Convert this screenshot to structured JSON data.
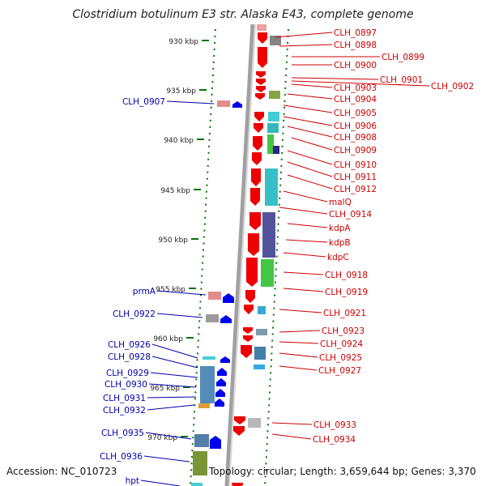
{
  "title": "Clostridium botulinum E3 str. Alaska E43, complete genome",
  "accession": "Accession: NC_010723",
  "topology": "Topology: circular; Length: 3,659,644 bp; Genes: 3,370",
  "colors": {
    "backbone": "#a0a0a0",
    "forward_gene": "#ee0000",
    "reverse_gene": "#0000ee",
    "forward_label": "#cc0000",
    "reverse_label": "#0000aa",
    "dots": "#007700"
  },
  "scale_ticks": [
    "930 kbp",
    "935 kbp",
    "940 kbp",
    "945 kbp",
    "950 kbp",
    "955 kbp",
    "960 kbp",
    "965 kbp",
    "970 kbp"
  ],
  "forward_labels": [
    "CLH_0897",
    "CLH_0898",
    "CLH_0899",
    "CLH_0900",
    "CLH_0901",
    "CLH_0902",
    "CLH_0903",
    "CLH_0904",
    "CLH_0905",
    "CLH_0906",
    "CLH_0908",
    "CLH_0909",
    "CLH_0910",
    "CLH_0911",
    "CLH_0912",
    "malQ",
    "CLH_0914",
    "kdpA",
    "kdpB",
    "kdpC",
    "CLH_0918",
    "CLH_0919",
    "CLH_0921",
    "CLH_0923",
    "CLH_0924",
    "CLH_0925",
    "CLH_0927",
    "CLH_0933",
    "CLH_0934"
  ],
  "reverse_labels": [
    "CLH_0907",
    "prmA",
    "CLH_0922",
    "CLH_0926",
    "CLH_0928",
    "CLH_0929",
    "CLH_0930",
    "CLH_0931",
    "CLH_0932",
    "CLH_0935",
    "CLH_0936",
    "hpt"
  ]
}
